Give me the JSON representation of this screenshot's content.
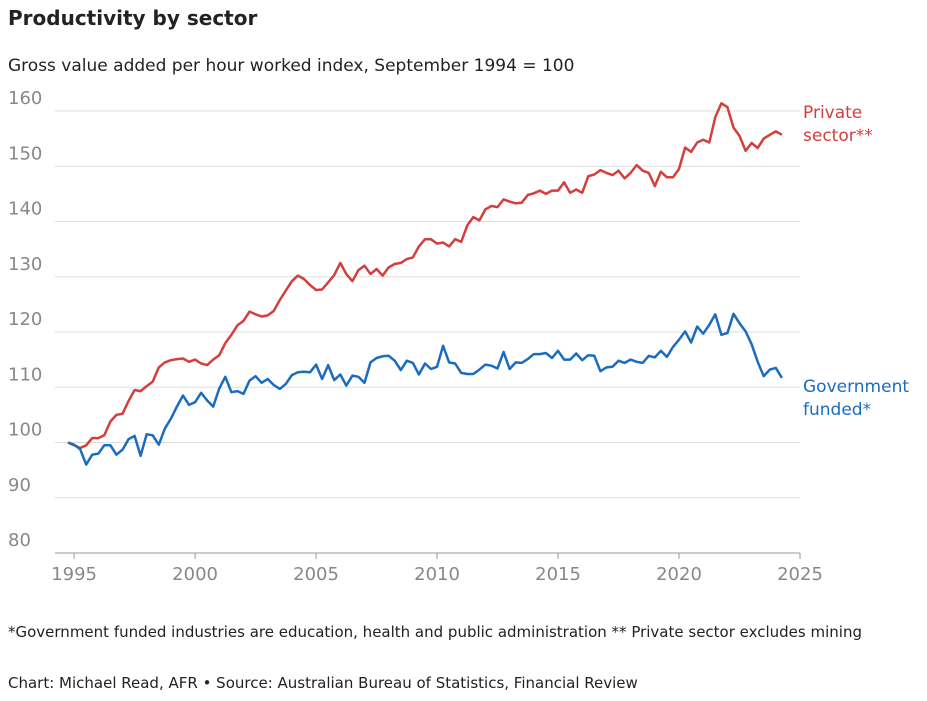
{
  "chart_data": {
    "type": "line",
    "title": "Productivity by sector",
    "subtitle": "Gross value added per hour worked index, September 1994 = 100",
    "footnote": "*Government funded industries are education, health and public administration ** Private sector excludes mining",
    "source": "Chart: Michael Read, AFR • Source: Australian Bureau of Statistics, Financial Review",
    "x": [
      1994.75,
      1995,
      1995.25,
      1995.5,
      1995.75,
      1996,
      1996.25,
      1996.5,
      1996.75,
      1997,
      1997.25,
      1997.5,
      1997.75,
      1998,
      1998.25,
      1998.5,
      1998.75,
      1999,
      1999.25,
      1999.5,
      1999.75,
      2000,
      2000.25,
      2000.5,
      2000.75,
      2001,
      2001.25,
      2001.5,
      2001.75,
      2002,
      2002.25,
      2002.5,
      2002.75,
      2003,
      2003.25,
      2003.5,
      2003.75,
      2004,
      2004.25,
      2004.5,
      2004.75,
      2005,
      2005.25,
      2005.5,
      2005.75,
      2006,
      2006.25,
      2006.5,
      2006.75,
      2007,
      2007.25,
      2007.5,
      2007.75,
      2008,
      2008.25,
      2008.5,
      2008.75,
      2009,
      2009.25,
      2009.5,
      2009.75,
      2010,
      2010.25,
      2010.5,
      2010.75,
      2011,
      2011.25,
      2011.5,
      2011.75,
      2012,
      2012.25,
      2012.5,
      2012.75,
      2013,
      2013.25,
      2013.5,
      2013.75,
      2014,
      2014.25,
      2014.5,
      2014.75,
      2015,
      2015.25,
      2015.5,
      2015.75,
      2016,
      2016.25,
      2016.5,
      2016.75,
      2017,
      2017.25,
      2017.5,
      2017.75,
      2018,
      2018.25,
      2018.5,
      2018.75,
      2019,
      2019.25,
      2019.5,
      2019.75,
      2020,
      2020.25,
      2020.5,
      2020.75,
      2021,
      2021.25,
      2021.5,
      2021.75,
      2022,
      2022.25,
      2022.5,
      2022.75,
      2023,
      2023.25,
      2023.5,
      2023.75,
      2024,
      2024.25
    ],
    "series": [
      {
        "name": "Private sector**",
        "color": "#d33f3c",
        "values": [
          100,
          99.5,
          99,
          99.5,
          100.8,
          100.8,
          101.3,
          103.8,
          105,
          105.2,
          107.5,
          109.5,
          109.3,
          110.2,
          111,
          113.6,
          114.5,
          114.9,
          115.1,
          115.2,
          114.6,
          115,
          114.3,
          114,
          115,
          115.8,
          118,
          119.5,
          121.2,
          122,
          123.7,
          123.2,
          122.8,
          123,
          123.8,
          125.8,
          127.5,
          129.2,
          130.2,
          129.6,
          128.5,
          127.6,
          127.7,
          129,
          130.3,
          132.5,
          130.5,
          129.2,
          131.2,
          132,
          130.5,
          131.4,
          130.2,
          131.7,
          132.3,
          132.5,
          133.2,
          133.5,
          135.5,
          136.8,
          136.8,
          136,
          136.2,
          135.5,
          136.8,
          136.3,
          139.3,
          140.8,
          140.2,
          142.2,
          142.8,
          142.6,
          144,
          143.6,
          143.3,
          143.4,
          144.8,
          145.1,
          145.6,
          145,
          145.6,
          145.6,
          147.1,
          145.2,
          145.8,
          145.2,
          148.2,
          148.5,
          149.3,
          148.8,
          148.4,
          149.2,
          147.8,
          148.8,
          150.2,
          149.2,
          148.8,
          146.4,
          149,
          148,
          148,
          149.5,
          153.4,
          152.6,
          154.3,
          154.8,
          154.3,
          158.9,
          161.4,
          160.7,
          157,
          155.5,
          152.8,
          154.2,
          153.3,
          155,
          155.7,
          156.3,
          155.7
        ]
      },
      {
        "name": "Government funded*",
        "color": "#1b6cbf",
        "values": [
          100,
          99.6,
          98.8,
          96,
          97.8,
          98,
          99.5,
          99.5,
          97.8,
          98.7,
          100.6,
          101.2,
          97.6,
          101.5,
          101.3,
          99.6,
          102.5,
          104.3,
          106.5,
          108.5,
          106.8,
          107.3,
          109,
          107.6,
          106.5,
          109.8,
          111.9,
          109.1,
          109.3,
          108.8,
          111.2,
          112,
          110.8,
          111.5,
          110.4,
          109.7,
          110.6,
          112.2,
          112.7,
          112.8,
          112.7,
          114.1,
          111.5,
          114,
          111.3,
          112.3,
          110.3,
          112.1,
          111.9,
          110.8,
          114.5,
          115.3,
          115.6,
          115.7,
          114.8,
          113.1,
          114.8,
          114.4,
          112.3,
          114.3,
          113.3,
          113.7,
          117.5,
          114.5,
          114.3,
          112.6,
          112.4,
          112.4,
          113.2,
          114.1,
          113.9,
          113.4,
          116.4,
          113.3,
          114.5,
          114.4,
          115.1,
          116,
          116,
          116.2,
          115.3,
          116.6,
          115,
          115,
          116.1,
          114.9,
          115.8,
          115.7,
          112.9,
          113.6,
          113.7,
          114.8,
          114.4,
          115,
          114.6,
          114.4,
          115.7,
          115.4,
          116.6,
          115.5,
          117.3,
          118.6,
          120.1,
          118.1,
          121,
          119.7,
          121.3,
          123.2,
          119.5,
          119.8,
          123.3,
          121.6,
          120.1,
          117.8,
          114.6,
          112,
          113.2,
          113.5,
          111.7
        ]
      }
    ],
    "xlim": [
      1994.5,
      2025
    ],
    "xticks": [
      1995,
      2000,
      2005,
      2010,
      2015,
      2020,
      2025
    ],
    "ylim": [
      80,
      160
    ],
    "yticks": [
      80,
      90,
      100,
      110,
      120,
      130,
      140,
      150,
      160
    ],
    "grid": true
  }
}
